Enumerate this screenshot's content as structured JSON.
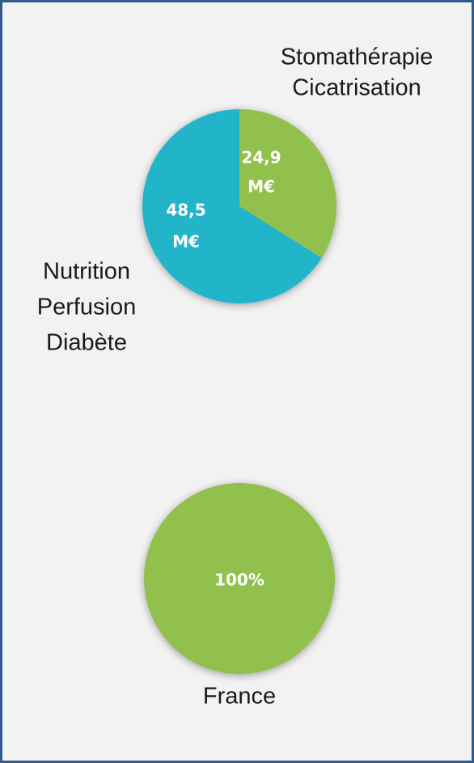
{
  "chart_data": [
    {
      "type": "pie",
      "categories": [
        [
          "Stomathérapie",
          "Cicatrisation"
        ],
        [
          "Nutrition",
          "Perfusion",
          "Diabète"
        ]
      ],
      "values": [
        24.9,
        48.5
      ],
      "value_labels": [
        [
          "24,9",
          "M€"
        ],
        [
          "48,5",
          "M€"
        ]
      ],
      "colors": [
        "#92c04d",
        "#23b4c9"
      ]
    },
    {
      "type": "pie",
      "categories": [
        [
          "France"
        ]
      ],
      "values": [
        100
      ],
      "value_labels": [
        [
          "100%"
        ]
      ],
      "colors": [
        "#92c04d"
      ]
    }
  ]
}
